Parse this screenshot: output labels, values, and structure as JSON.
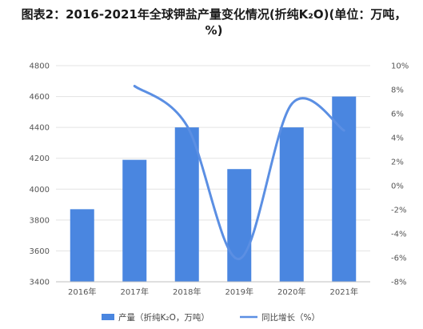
{
  "chart_data": {
    "type": "bar+line",
    "title": "图表2：2016-2021年全球钾盐产量变化情况(折纯K₂O)(单位：万吨，%)",
    "categories": [
      "2016年",
      "2017年",
      "2018年",
      "2019年",
      "2020年",
      "2021年"
    ],
    "series": [
      {
        "name": "产量（折纯K₂O，万吨）",
        "type": "bar",
        "axis": "left",
        "color": "#4a86e0",
        "values": [
          3870,
          4190,
          4400,
          4130,
          4400,
          4600
        ]
      },
      {
        "name": "同比增长（%）",
        "type": "line",
        "axis": "right",
        "color": "#5b8fe3",
        "values": [
          null,
          8.3,
          5.0,
          -6.1,
          6.8,
          4.6
        ]
      }
    ],
    "y_left": {
      "min": 3400,
      "max": 4800,
      "step": 200,
      "ticks": [
        "3400",
        "3600",
        "3800",
        "4000",
        "4200",
        "4400",
        "4600",
        "4800"
      ]
    },
    "y_right": {
      "min": -8,
      "max": 10,
      "step": 2,
      "ticks": [
        "-8%",
        "-6%",
        "-4%",
        "-2%",
        "0%",
        "2%",
        "4%",
        "6%",
        "8%",
        "10%"
      ]
    },
    "grid": true,
    "legend": "bottom"
  }
}
